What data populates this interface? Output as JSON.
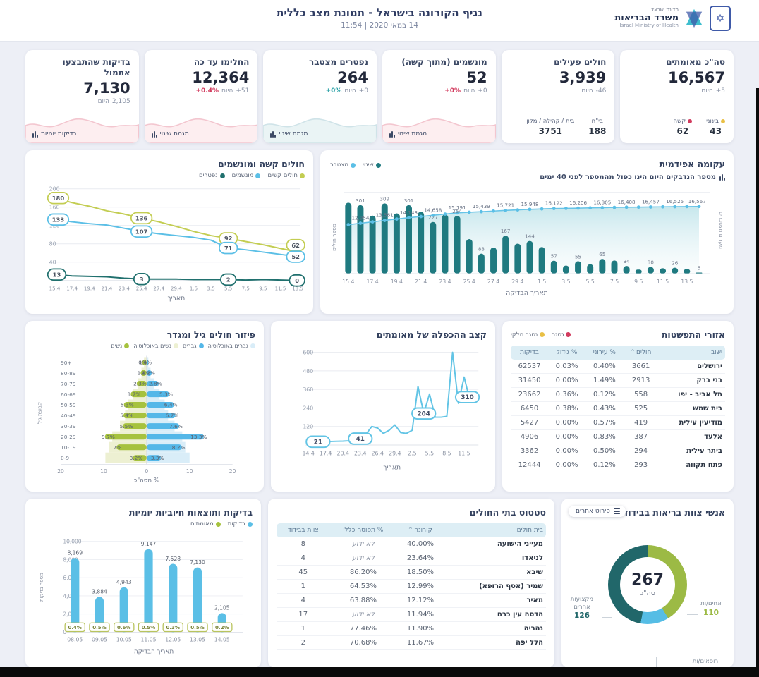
{
  "header": {
    "title": "נגיף הקורונה בישראל - תמונת מצב כללית",
    "datetime": "14 במאי 2020 | 11:54",
    "logo": {
      "line1": "מדינת ישראל",
      "name": "משרד הבריאות",
      "eng": "Israel Ministry of Health"
    }
  },
  "colors": {
    "teal_dark": "#1f7a80",
    "blue": "#5bbfe6",
    "yellow_green": "#c3cd52",
    "green": "#a6c23e",
    "red": "#d23b5e",
    "yellow": "#e9c046",
    "navy": "#3d4a66"
  },
  "kpi_cards": [
    {
      "title": "סה\"כ מאומתים",
      "value": "16,567",
      "change": "+5",
      "today": "היום",
      "stats": [
        {
          "label": "בינוני",
          "dot": "#e9c046",
          "value": "43"
        },
        {
          "label": "קשה",
          "dot": "#d23b5e",
          "value": "62"
        }
      ]
    },
    {
      "title": "חולים פעילים",
      "value": "3,939",
      "change": "-46",
      "today": "היום",
      "stats": [
        {
          "label": "בי\"ח",
          "value": "188"
        },
        {
          "label": "בית / קהילה / מלון",
          "value": "3751"
        }
      ]
    },
    {
      "title": "מונשמים (מתוך קשה)",
      "value": "52",
      "change": "+0",
      "today": "היום",
      "pct": "+0%",
      "pct_color": "#d23b5e",
      "footer": "מגמת שינוי",
      "spark": "pink"
    },
    {
      "title": "נפטרים מצטבר",
      "value": "264",
      "change": "+0",
      "today": "היום",
      "pct": "+0%",
      "pct_color": "#2fa3a8",
      "footer": "מגמת שינוי",
      "spark": "teal"
    },
    {
      "title": "החלימו עד כה",
      "value": "12,364",
      "change": "+51",
      "today": "היום",
      "pct": "+0.4%",
      "pct_color": "#d23b5e",
      "footer": "מגמת שינוי",
      "spark": "pink"
    },
    {
      "title": "בדיקות שהתבצעו אתמול",
      "value": "7,130",
      "change": "2,105",
      "today": "היום",
      "footer": "בדיקות יומיות",
      "spark": "pink"
    }
  ],
  "chart_data": [
    {
      "id": "severe_vent",
      "type": "line",
      "title": "חולים קשה ומונשמים",
      "xlabel": "תאריך",
      "ylim": [
        0,
        200
      ],
      "y_ticks": [
        40,
        80,
        120,
        160,
        200
      ],
      "x": [
        "15.4",
        "17.4",
        "19.4",
        "21.4",
        "23.4",
        "25.4",
        "27.4",
        "29.4",
        "1.5",
        "3.5",
        "5.5",
        "7.5",
        "9.5",
        "11.5",
        "13.5"
      ],
      "series": [
        {
          "name": "חולים קשים",
          "color": "#c3cd52",
          "values": [
            180,
            170,
            162,
            152,
            145,
            136,
            128,
            118,
            107,
            98,
            92,
            85,
            78,
            70,
            62
          ],
          "labels": [
            {
              "i": 0,
              "t": "180"
            },
            {
              "i": 5,
              "t": "136"
            },
            {
              "i": 10,
              "t": "92"
            },
            {
              "i": 14,
              "t": "62"
            }
          ]
        },
        {
          "name": "מונשמים",
          "color": "#5bbfe6",
          "values": [
            133,
            128,
            124,
            121,
            114,
            107,
            102,
            98,
            94,
            88,
            71,
            67,
            62,
            57,
            52
          ],
          "labels": [
            {
              "i": 0,
              "t": "133"
            },
            {
              "i": 5,
              "t": "107"
            },
            {
              "i": 10,
              "t": "71"
            },
            {
              "i": 14,
              "t": "52"
            }
          ]
        },
        {
          "name": "נפטרים",
          "color": "#20706e",
          "values": [
            13,
            10,
            9,
            8,
            5,
            3,
            3,
            3,
            2,
            2,
            2,
            1,
            2,
            1,
            0
          ],
          "labels": [
            {
              "i": 0,
              "t": "13"
            },
            {
              "i": 5,
              "t": "3"
            },
            {
              "i": 10,
              "t": "2"
            },
            {
              "i": 14,
              "t": "0"
            }
          ]
        }
      ]
    },
    {
      "id": "epidemic_curve",
      "type": "bar+line",
      "title": "עקומה אפידמית",
      "subtitle": "מספר הנדבקים היום הינו כפול מהמספר לפני 40 ימים",
      "legend": [
        {
          "label": "שינוי",
          "color": "#1f7a80"
        },
        {
          "label": "מצטבר",
          "color": "#5bbfe6"
        }
      ],
      "xlabel": "תאריך הבדיקה",
      "ylabel_left": "מספר חולים",
      "ylabel_right": "מקרים מצטברים",
      "x_ticks": [
        "15.4",
        "17.4",
        "19.4",
        "21.4",
        "23.4",
        "25.4",
        "27.4",
        "29.4",
        "1.5",
        "3.5",
        "5.5",
        "7.5",
        "9.5",
        "11.5",
        "13.5"
      ],
      "bars": [
        312,
        301,
        255,
        309,
        265,
        301,
        272,
        227,
        260,
        254,
        152,
        88,
        115,
        167,
        132,
        144,
        117,
        57,
        36,
        55,
        42,
        65,
        58,
        34,
        18,
        30,
        24,
        26,
        20,
        5
      ],
      "bar_labels": [
        {
          "i": 1,
          "t": "301"
        },
        {
          "i": 3,
          "t": "309"
        },
        {
          "i": 5,
          "t": "301"
        },
        {
          "i": 7,
          "t": "227"
        },
        {
          "i": 9,
          "t": "254"
        },
        {
          "i": 11,
          "t": "88"
        },
        {
          "i": 13,
          "t": "167"
        },
        {
          "i": 15,
          "t": "144"
        },
        {
          "i": 17,
          "t": "57"
        },
        {
          "i": 19,
          "t": "55"
        },
        {
          "i": 21,
          "t": "65"
        },
        {
          "i": 23,
          "t": "34"
        },
        {
          "i": 25,
          "t": "30"
        },
        {
          "i": 27,
          "t": "26"
        },
        {
          "i": 29,
          "t": "5"
        }
      ],
      "cumulative": [
        12650,
        12954,
        13260,
        13561,
        13860,
        14143,
        14400,
        14658,
        14920,
        15191,
        15320,
        15439,
        15580,
        15721,
        15830,
        15948,
        16040,
        16122,
        16160,
        16206,
        16260,
        16305,
        16360,
        16408,
        16430,
        16457,
        16490,
        16525,
        16550,
        16567
      ],
      "cum_labels": [
        {
          "i": 1,
          "t": "12,954"
        },
        {
          "i": 3,
          "t": "13,561"
        },
        {
          "i": 5,
          "t": "14,143"
        },
        {
          "i": 7,
          "t": "14,658"
        },
        {
          "i": 9,
          "t": "15,191"
        },
        {
          "i": 11,
          "t": "15,439"
        },
        {
          "i": 13,
          "t": "15,721"
        },
        {
          "i": 15,
          "t": "15,948"
        },
        {
          "i": 17,
          "t": "16,122"
        },
        {
          "i": 19,
          "t": "16,206"
        },
        {
          "i": 21,
          "t": "16,305"
        },
        {
          "i": 23,
          "t": "16,408"
        },
        {
          "i": 25,
          "t": "16,457"
        },
        {
          "i": 27,
          "t": "16,525"
        },
        {
          "i": 29,
          "t": "16,567"
        }
      ]
    },
    {
      "id": "age_gender",
      "type": "pyramid",
      "title": "פיזור חולים גיל ומגדר",
      "legend": [
        {
          "label": "גברים באוכלוסיה",
          "color": "#d9edf8"
        },
        {
          "label": "גברים",
          "color": "#54b7e8"
        },
        {
          "label": "נשים באוכלוסיה",
          "color": "#edf0d2"
        },
        {
          "label": "נשים",
          "color": "#a6c23e"
        }
      ],
      "xlabel": "% מסה\"כ",
      "ylabel": "קבוצת גיל",
      "x_ticks": [
        "20",
        "10",
        "0",
        "10",
        "20"
      ],
      "ages": [
        "+90",
        "80-89",
        "70-79",
        "60-69",
        "50-59",
        "40-49",
        "30-39",
        "20-29",
        "10-19",
        "0-9"
      ],
      "women": [
        1,
        1.4,
        2.3,
        3.7,
        5.3,
        5.4,
        5.5,
        9.7,
        7,
        3.2
      ],
      "women_labels": [
        "1%",
        "1.4%",
        "2.3%",
        "3.7%",
        "5.3%",
        "5.4%",
        "5.5%",
        "9.7%",
        "7%",
        "3.2%"
      ],
      "men": [
        0.4,
        1.2,
        2.8,
        5.3,
        6.4,
        6.7,
        7.6,
        13.3,
        8.2,
        3.3
      ],
      "men_labels": [
        "0.4%",
        "1.2%",
        "2.8%",
        "5.3%",
        "6.4%",
        "6.7%",
        "7.6%",
        "13.3%",
        "8.2%",
        "3.3%"
      ],
      "women_pop": [
        0.6,
        1.2,
        2,
        3.2,
        4.3,
        5,
        6.2,
        8,
        8.8,
        9.6
      ],
      "men_pop": [
        0.4,
        0.9,
        1.8,
        3,
        4.2,
        5,
        6.5,
        8.3,
        9,
        10
      ]
    },
    {
      "id": "doubling_rate",
      "type": "line",
      "title": "קצב ההכפלה של מאומתים",
      "xlabel": "תאריך",
      "color": "#62c4e5",
      "ylim": [
        0,
        600
      ],
      "y_ticks": [
        120,
        240,
        360,
        480,
        600
      ],
      "x_ticks": [
        "14.4",
        "17.4",
        "20.4",
        "23.4",
        "26.4",
        "29.4",
        "2.5",
        "5.5",
        "8.5",
        "11.5"
      ],
      "values": [
        21,
        21,
        22,
        22,
        23,
        24,
        25,
        27,
        30,
        41,
        70,
        120,
        110,
        75,
        95,
        130,
        80,
        75,
        95,
        380,
        204,
        330,
        180,
        180,
        185,
        600,
        270,
        440,
        290,
        310
      ],
      "labels": [
        {
          "i": 0,
          "t": "21"
        },
        {
          "i": 9,
          "t": "41"
        },
        {
          "i": 20,
          "t": "204"
        },
        {
          "i": 29,
          "t": "310"
        }
      ]
    },
    {
      "id": "daily_tests",
      "type": "bar",
      "title": "בדיקות ותוצאות חיוביות יומיות",
      "legend": [
        {
          "label": "בדיקות",
          "color": "#5bbfe6"
        },
        {
          "label": "מאומתים",
          "color": "#a6c23e"
        }
      ],
      "xlabel": "תאריך הבדיקה",
      "ylabel": "מספר בדיקות",
      "y_ticks": [
        "0",
        "2,000",
        "4,000",
        "6,000",
        "8,000",
        "10,000"
      ],
      "ylim": [
        0,
        10000
      ],
      "dates": [
        "08.05",
        "09.05",
        "10.05",
        "11.05",
        "12.05",
        "13.05",
        "14.05"
      ],
      "values": [
        8169,
        3884,
        4943,
        9147,
        7528,
        7130,
        2105
      ],
      "value_labels": [
        "8,169",
        "3,884",
        "4,943",
        "9,147",
        "7,528",
        "7,130",
        "2,105"
      ],
      "positive_pct": [
        "0.4%",
        "0.5%",
        "0.6%",
        "0.5%",
        "0.3%",
        "0.5%",
        "0.2%"
      ]
    },
    {
      "id": "staff_isolated",
      "type": "donut",
      "title": "אנשי צוות בריאות בבידוד",
      "button": "פירוט אחרים",
      "total": "267",
      "total_label": "סה\"כ",
      "segments": [
        {
          "label": "אחים/ות",
          "value": 110,
          "color": "#9cba45"
        },
        {
          "label": "רופאים/ות",
          "value": 31,
          "color": "#55bde5"
        },
        {
          "label": "מקצועות אחרים",
          "value": 126,
          "color": "#21676a"
        }
      ]
    }
  ],
  "tables": {
    "spread": {
      "title": "אזורי התפשטות",
      "legend": [
        {
          "label": "נסגר",
          "color": "#d23b5e"
        },
        {
          "label": "נסגר חלקי",
          "color": "#e9c046"
        }
      ],
      "columns": [
        "ישוב",
        "חולים",
        "% עירוני",
        "% גידול",
        "בדיקות"
      ],
      "sorted_col": 1,
      "rows": [
        [
          "ירושלים",
          "3661",
          "0.40%",
          "0.03%",
          "62537"
        ],
        [
          "בני ברק",
          "2913",
          "1.49%",
          "0.00%",
          "31450"
        ],
        [
          "תל אביב - יפו",
          "558",
          "0.12%",
          "0.36%",
          "23662"
        ],
        [
          "בית שמש",
          "525",
          "0.43%",
          "0.38%",
          "6450"
        ],
        [
          "מודיעין עילית",
          "419",
          "0.57%",
          "0.00%",
          "5427"
        ],
        [
          "אלעד",
          "387",
          "0.83%",
          "0.00%",
          "4906"
        ],
        [
          "ביתר עילית",
          "294",
          "0.50%",
          "0.00%",
          "3362"
        ],
        [
          "פתח תקווה",
          "293",
          "0.12%",
          "0.00%",
          "12444"
        ]
      ]
    },
    "hospitals": {
      "title": "סטטוס בתי החולים",
      "unknown_label": "לא ידוע",
      "columns": [
        "בית חולים",
        "קורונה",
        "% תפוסה כללי",
        "צוות בבידוד"
      ],
      "sorted_col": 1,
      "rows": [
        [
          "מעייני הישועה",
          "40.00%",
          "לא ידוע",
          "8"
        ],
        [
          "לניאדו",
          "23.64%",
          "לא ידוע",
          "4"
        ],
        [
          "שיבא",
          "18.50%",
          "86.20%",
          "45"
        ],
        [
          "שמיר (אסף הרופא)",
          "12.99%",
          "64.53%",
          "1"
        ],
        [
          "מאיר",
          "12.12%",
          "63.88%",
          "4"
        ],
        [
          "הדסה עין כרם",
          "11.94%",
          "לא ידוע",
          "17"
        ],
        [
          "נהריה",
          "11.90%",
          "77.46%",
          "1"
        ],
        [
          "הלל יפה",
          "11.67%",
          "70.68%",
          "2"
        ]
      ]
    }
  }
}
